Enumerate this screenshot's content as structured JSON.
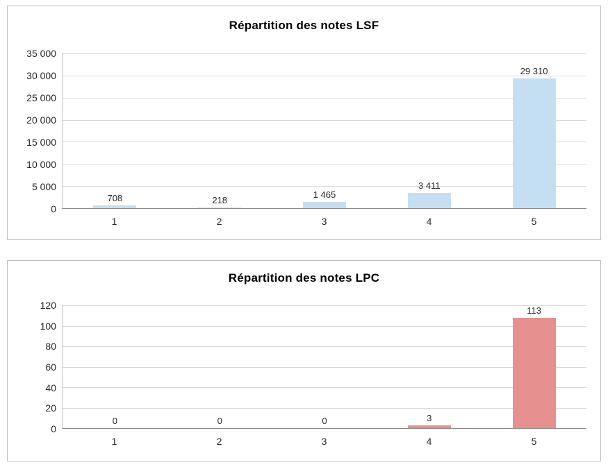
{
  "page": {
    "background": "#FFFFFF"
  },
  "chart_data": [
    {
      "type": "bar",
      "title": "Répartition des notes LSF",
      "categories": [
        "1",
        "2",
        "3",
        "4",
        "5"
      ],
      "values": [
        708,
        218,
        1465,
        3411,
        29310
      ],
      "data_labels": [
        "708",
        "218",
        "1 465",
        "3 411",
        "29 310"
      ],
      "xlabel": "",
      "ylabel": "",
      "ylim": [
        0,
        35000
      ],
      "ytick_step": 5000,
      "ytick_labels": [
        "0",
        "5 000",
        "10 000",
        "15 000",
        "20 000",
        "25 000",
        "30 000",
        "35 000"
      ],
      "bar_color": "#C5DFF2",
      "grid": true,
      "legend_position": "none"
    },
    {
      "type": "bar",
      "title": "Répartition des notes LPC",
      "categories": [
        "1",
        "2",
        "3",
        "4",
        "5"
      ],
      "values": [
        0,
        0,
        0,
        3,
        113
      ],
      "data_labels": [
        "0",
        "0",
        "0",
        "3",
        "113"
      ],
      "xlabel": "",
      "ylabel": "",
      "ylim": [
        0,
        120
      ],
      "ytick_step": 20,
      "ytick_labels": [
        "0",
        "20",
        "40",
        "60",
        "80",
        "100",
        "120"
      ],
      "bar_color": "#E6908F",
      "grid": true,
      "legend_position": "none"
    }
  ]
}
